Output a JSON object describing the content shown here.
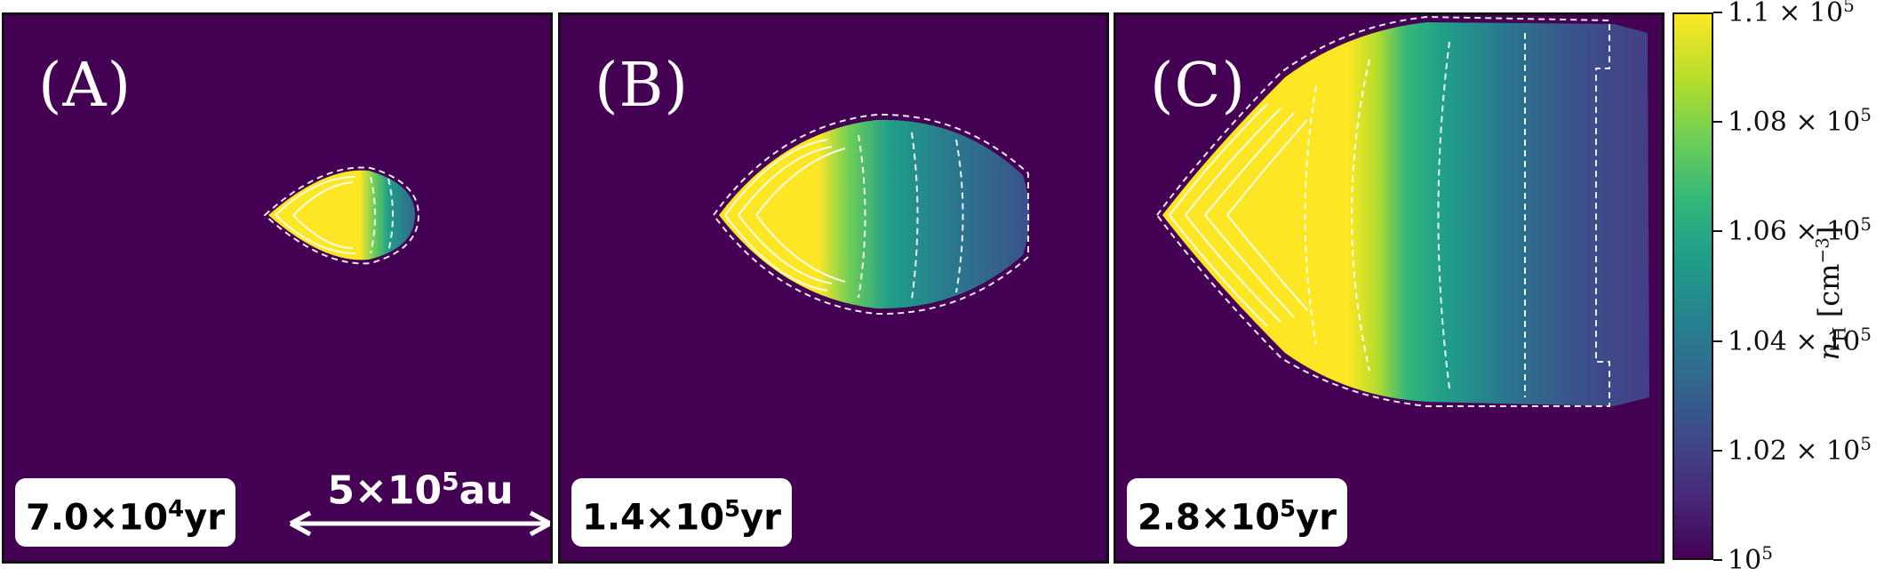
{
  "chart_data": {
    "type": "heatmap",
    "colormap": "viridis",
    "background_color": "#440154",
    "panels": [
      {
        "label": "(A)",
        "time": "7.0×10",
        "time_exp": "4",
        "time_unit": "yr"
      },
      {
        "label": "(B)",
        "time": "1.4×10",
        "time_exp": "5",
        "time_unit": "yr"
      },
      {
        "label": "(C)",
        "time": "2.8×10",
        "time_exp": "5",
        "time_unit": "yr"
      }
    ],
    "scale_bar": {
      "text": "5×10",
      "exp": "5",
      "unit": "au"
    },
    "colorbar": {
      "label": "n_H [cm^-3]",
      "range": [
        100000,
        110000
      ],
      "ticks": [
        {
          "value": 100000,
          "mantissa": "10",
          "exp": "5"
        },
        {
          "value": 102000,
          "mantissa": "1.02 × 10",
          "exp": "5"
        },
        {
          "value": 104000,
          "mantissa": "1.04 × 10",
          "exp": "5"
        },
        {
          "value": 106000,
          "mantissa": "1.06 × 10",
          "exp": "5"
        },
        {
          "value": 108000,
          "mantissa": "1.08 × 10",
          "exp": "5"
        },
        {
          "value": 110000,
          "mantissa": "1.1 × 10",
          "exp": "5"
        }
      ]
    }
  }
}
